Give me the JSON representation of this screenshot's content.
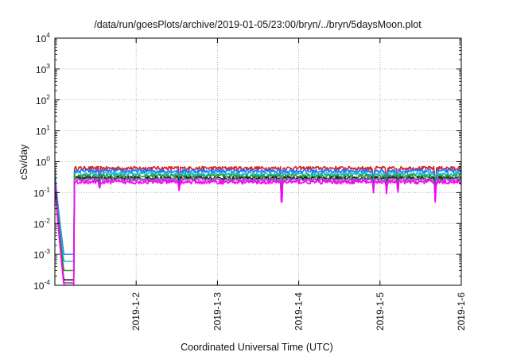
{
  "chart_data": {
    "type": "line",
    "title": "/data/run/goesPlots/archive/2019-01-05/23:00/bryn/../bryn/5daysMoon.plot",
    "xlabel": "Coordinated Universal Time (UTC)",
    "ylabel": "cSv/day",
    "yscale": "log",
    "ylim": [
      0.0001,
      10000
    ],
    "y_ticks": [
      {
        "value": 0.0001,
        "base": "10",
        "exp": "-4"
      },
      {
        "value": 0.001,
        "base": "10",
        "exp": "-3"
      },
      {
        "value": 0.01,
        "base": "10",
        "exp": "-2"
      },
      {
        "value": 0.1,
        "base": "10",
        "exp": "-1"
      },
      {
        "value": 1,
        "base": "10",
        "exp": "0"
      },
      {
        "value": 10,
        "base": "10",
        "exp": "1"
      },
      {
        "value": 100,
        "base": "10",
        "exp": "2"
      },
      {
        "value": 1000,
        "base": "10",
        "exp": "3"
      },
      {
        "value": 10000,
        "base": "10",
        "exp": "4"
      }
    ],
    "xlim": [
      "2019-01-01 00:00",
      "2019-01-06 00:00"
    ],
    "x_ticks": [
      "2019-1-2",
      "2019-1-3",
      "2019-1-4",
      "2019-1-5",
      "2019-1-6"
    ],
    "grid": true,
    "legend": "none",
    "series": [
      {
        "color": "#d62728",
        "level": 0.62,
        "dip_min": 0.00012
      },
      {
        "color": "#1f77ff",
        "level": 0.5,
        "dip_min": 0.001
      },
      {
        "color": "#17becf",
        "level": 0.4,
        "dip_min": 0.0006
      },
      {
        "color": "#2ca02c",
        "level": 0.34,
        "dip_min": 0.0003
      },
      {
        "color": "#222222",
        "level": 0.29,
        "dip_min": 0.00015
      },
      {
        "color": "#9467bd",
        "level": 0.26,
        "dip_min": 0.00012
      },
      {
        "color": "#ff00ff",
        "level": 0.22,
        "dip_min": 0.0001
      }
    ],
    "startup_dip": {
      "start_day": 0.0,
      "end_day": 0.22,
      "recover_day": 0.24
    },
    "spikes": [
      {
        "day": 0.55,
        "min": 0.15
      },
      {
        "day": 1.53,
        "min": 0.13
      },
      {
        "day": 2.79,
        "min": 0.028
      },
      {
        "day": 3.92,
        "min": 0.13
      },
      {
        "day": 4.08,
        "min": 0.12
      },
      {
        "day": 4.22,
        "min": 0.11
      },
      {
        "day": 4.68,
        "min": 0.055
      }
    ]
  }
}
